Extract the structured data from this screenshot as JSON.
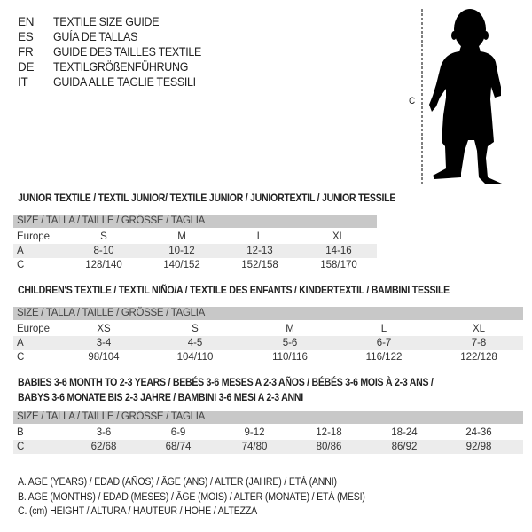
{
  "languages": [
    {
      "code": "EN",
      "title": "TEXTILE SIZE GUIDE"
    },
    {
      "code": "ES",
      "title": "GUÍA DE TALLAS"
    },
    {
      "code": "FR",
      "title": "GUIDE DES TAILLES TEXTILE"
    },
    {
      "code": "DE",
      "title": "TEXTILGRÖßENFÜHRUNG"
    },
    {
      "code": "IT",
      "title": "GUIDA ALLE TAGLIE TESSILI"
    }
  ],
  "figure": {
    "measure_label": "C"
  },
  "junior": {
    "title": "JUNIOR TEXTILE / TEXTIL JUNIOR/ TEXTILE JUNIOR / JUNIORTEXTIL / JUNIOR TESSILE",
    "header": "SIZE / TALLA / TAILLE / GRÖSSE / TAGLIA",
    "rows": [
      {
        "label": "Europe",
        "cells": [
          "S",
          "M",
          "L",
          "XL"
        ]
      },
      {
        "label": "A",
        "cells": [
          "8-10",
          "10-12",
          "12-13",
          "14-16"
        ]
      },
      {
        "label": "C",
        "cells": [
          "128/140",
          "140/152",
          "152/158",
          "158/170"
        ]
      }
    ]
  },
  "children": {
    "title": "CHILDREN'S TEXTILE / TEXTIL NIÑO/A / TEXTILE DES ENFANTS / KINDERTEXTIL / BAMBINI TESSILE",
    "header": "SIZE / TALLA / TAILLE / GRÖSSE / TAGLIA",
    "rows": [
      {
        "label": "Europe",
        "cells": [
          "XS",
          "S",
          "M",
          "L",
          "XL"
        ]
      },
      {
        "label": "A",
        "cells": [
          "3-4",
          "4-5",
          "5-6",
          "6-7",
          "7-8"
        ]
      },
      {
        "label": "C",
        "cells": [
          "98/104",
          "104/110",
          "110/116",
          "116/122",
          "122/128"
        ]
      }
    ]
  },
  "babies": {
    "title_line1": "BABIES 3-6 MONTH TO 2-3 YEARS / BEBÉS 3-6 MESES A 2-3 AÑOS / BÉBÉS 3-6 MOIS À 2-3 ANS /",
    "title_line2": "BABYS 3-6 MONATE BIS 2-3 JAHRE / BAMBINI 3-6 MESI A 2-3 ANNI",
    "header": "SIZE / TALLA / TAILLE / GRÖSSE / TAGLIA",
    "rows": [
      {
        "label": "B",
        "cells": [
          "3-6",
          "6-9",
          "9-12",
          "12-18",
          "18-24",
          "24-36"
        ]
      },
      {
        "label": "C",
        "cells": [
          "62/68",
          "68/74",
          "74/80",
          "80/86",
          "86/92",
          "92/98"
        ]
      }
    ]
  },
  "legend": [
    "A. AGE (YEARS) / EDAD (AÑOS) / ÂGE (ANS) / ALTER (JAHRE) / ETÀ (ANNI)",
    "B. AGE (MONTHS) / EDAD (MESES) / ÂGE (MOIS) / ALTER (MONATE) / ETÀ (MESI)",
    "C. (cm) HEIGHT / ALTURA / HAUTEUR / HÖHE / ALTEZZA"
  ]
}
